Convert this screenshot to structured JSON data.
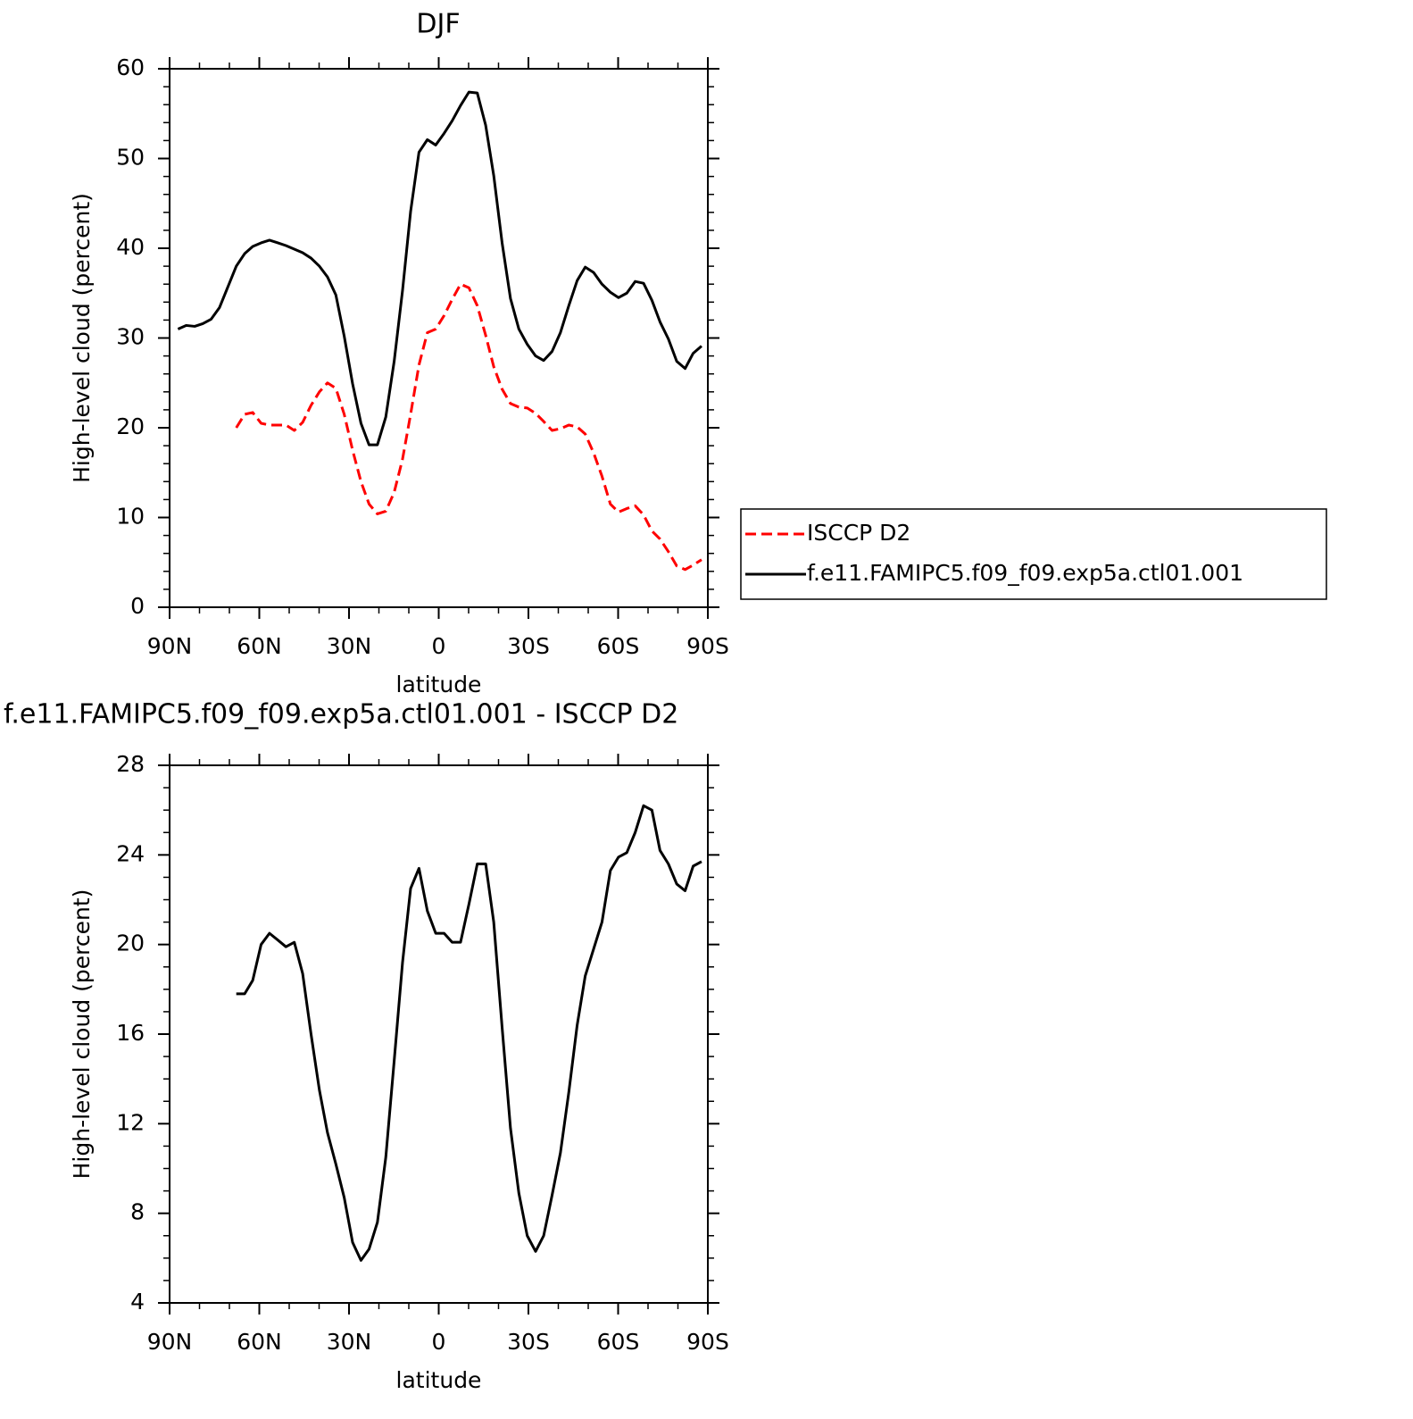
{
  "chart_data": [
    {
      "type": "line",
      "title": "DJF",
      "x_label": "latitude",
      "y_label": "High-level cloud (percent)",
      "legend": "right",
      "x": [
        87.2,
        84.4,
        81.6,
        78.9,
        76.1,
        73.3,
        70.5,
        67.7,
        64.9,
        62.2,
        59.4,
        56.6,
        53.8,
        51.1,
        48.3,
        45.5,
        42.7,
        39.9,
        37.2,
        34.4,
        31.6,
        28.8,
        26.0,
        23.3,
        20.5,
        17.7,
        14.9,
        12.1,
        9.4,
        6.6,
        3.8,
        1.0,
        -1.8,
        -4.5,
        -7.3,
        -10.1,
        -12.9,
        -15.7,
        -18.4,
        -21.2,
        -24.0,
        -26.8,
        -29.6,
        -32.4,
        -35.1,
        -37.9,
        -40.7,
        -43.5,
        -46.3,
        -49.0,
        -51.8,
        -54.6,
        -57.4,
        -60.1,
        -62.9,
        -65.7,
        -68.5,
        -71.3,
        -74.0,
        -76.8,
        -79.6,
        -82.4,
        -85.1,
        -87.9
      ],
      "series": [
        {
          "name": "ISCCP D2",
          "color": "#ff0000",
          "dash": true,
          "values": [
            null,
            null,
            null,
            null,
            null,
            null,
            null,
            20.0,
            21.5,
            21.7,
            20.5,
            20.3,
            20.3,
            20.3,
            19.7,
            20.6,
            22.5,
            24.0,
            25.0,
            24.4,
            21.5,
            17.5,
            14.0,
            11.5,
            10.4,
            10.7,
            12.8,
            16.5,
            21.5,
            27.0,
            30.6,
            31.0,
            32.5,
            34.3,
            36.0,
            35.6,
            33.6,
            30.3,
            26.8,
            24.3,
            22.7,
            22.3,
            22.2,
            21.6,
            20.7,
            19.7,
            19.9,
            20.3,
            20.1,
            19.3,
            17.2,
            14.6,
            11.5,
            10.6,
            11.0,
            11.3,
            10.3,
            8.5,
            7.6,
            6.2,
            4.6,
            4.2,
            4.7,
            5.3
          ]
        },
        {
          "name": "f.e11.FAMIPC5.f09_f09.exp5a.ctl01.001",
          "color": "#000000",
          "dash": false,
          "values": [
            31.0,
            31.4,
            31.3,
            31.6,
            32.1,
            33.4,
            35.7,
            38.0,
            39.4,
            40.2,
            40.6,
            40.9,
            40.6,
            40.3,
            39.9,
            39.5,
            38.9,
            38.0,
            36.8,
            34.8,
            30.2,
            24.9,
            20.5,
            18.1,
            18.1,
            21.2,
            27.4,
            35.3,
            44.1,
            50.7,
            52.1,
            51.5,
            52.8,
            54.2,
            55.9,
            57.4,
            57.3,
            53.7,
            48.1,
            40.6,
            34.4,
            31.0,
            29.3,
            28.0,
            27.5,
            28.5,
            30.6,
            33.6,
            36.4,
            37.9,
            37.3,
            36.0,
            35.1,
            34.5,
            35.0,
            36.3,
            36.1,
            34.2,
            31.8,
            29.9,
            27.4,
            26.6,
            28.3,
            29.1
          ]
        }
      ],
      "xlim": [
        90,
        -90
      ],
      "xticks": [
        {
          "value": 90,
          "label": "90N"
        },
        {
          "value": 60,
          "label": "60N"
        },
        {
          "value": 30,
          "label": "30N"
        },
        0,
        {
          "value": -30,
          "label": "30S"
        },
        {
          "value": -60,
          "label": "60S"
        },
        {
          "value": -90,
          "label": "90S"
        }
      ],
      "ylim": [
        0,
        60
      ],
      "yticks": [
        0,
        10,
        20,
        30,
        40,
        50,
        60
      ]
    },
    {
      "type": "line",
      "title": "f.e11.FAMIPC5.f09_f09.exp5a.ctl01.001 - ISCCP D2",
      "x_label": "latitude",
      "y_label": "High-level cloud (percent)",
      "x": [
        87.2,
        84.4,
        81.6,
        78.9,
        76.1,
        73.3,
        70.5,
        67.7,
        64.9,
        62.2,
        59.4,
        56.6,
        53.8,
        51.1,
        48.3,
        45.5,
        42.7,
        39.9,
        37.2,
        34.4,
        31.6,
        28.8,
        26.0,
        23.3,
        20.5,
        17.7,
        14.9,
        12.1,
        9.4,
        6.6,
        3.8,
        1.0,
        -1.8,
        -4.5,
        -7.3,
        -10.1,
        -12.9,
        -15.7,
        -18.4,
        -21.2,
        -24.0,
        -26.8,
        -29.6,
        -32.4,
        -35.1,
        -37.9,
        -40.7,
        -43.5,
        -46.3,
        -49.0,
        -51.8,
        -54.6,
        -57.4,
        -60.1,
        -62.9,
        -65.7,
        -68.5,
        -71.3,
        -74.0,
        -76.8,
        -79.6,
        -82.4,
        -85.1,
        -87.9
      ],
      "series": [
        {
          "color": "#000000",
          "dash": false,
          "values": [
            null,
            null,
            null,
            null,
            null,
            null,
            null,
            17.8,
            17.8,
            18.4,
            20.0,
            20.5,
            20.2,
            19.9,
            20.1,
            18.7,
            16.0,
            13.5,
            11.6,
            10.2,
            8.7,
            6.7,
            5.9,
            6.4,
            7.6,
            10.5,
            14.8,
            19.2,
            22.5,
            23.4,
            21.5,
            20.5,
            20.5,
            20.1,
            20.1,
            21.8,
            23.6,
            23.6,
            21.0,
            16.3,
            11.8,
            8.9,
            7.0,
            6.3,
            7.0,
            8.8,
            10.7,
            13.4,
            16.4,
            18.6,
            19.8,
            21.0,
            23.3,
            23.9,
            24.1,
            25.0,
            26.2,
            26.0,
            24.2,
            23.6,
            22.7,
            22.4,
            23.5,
            23.7
          ]
        }
      ],
      "xlim": [
        90,
        -90
      ],
      "xticks": [
        {
          "value": 90,
          "label": "90N"
        },
        {
          "value": 60,
          "label": "60N"
        },
        {
          "value": 30,
          "label": "30N"
        },
        0,
        {
          "value": -30,
          "label": "30S"
        },
        {
          "value": -60,
          "label": "60S"
        },
        {
          "value": -90,
          "label": "90S"
        }
      ],
      "ylim": [
        4,
        28
      ],
      "yticks": [
        4,
        8,
        12,
        16,
        20,
        24,
        28
      ]
    }
  ]
}
